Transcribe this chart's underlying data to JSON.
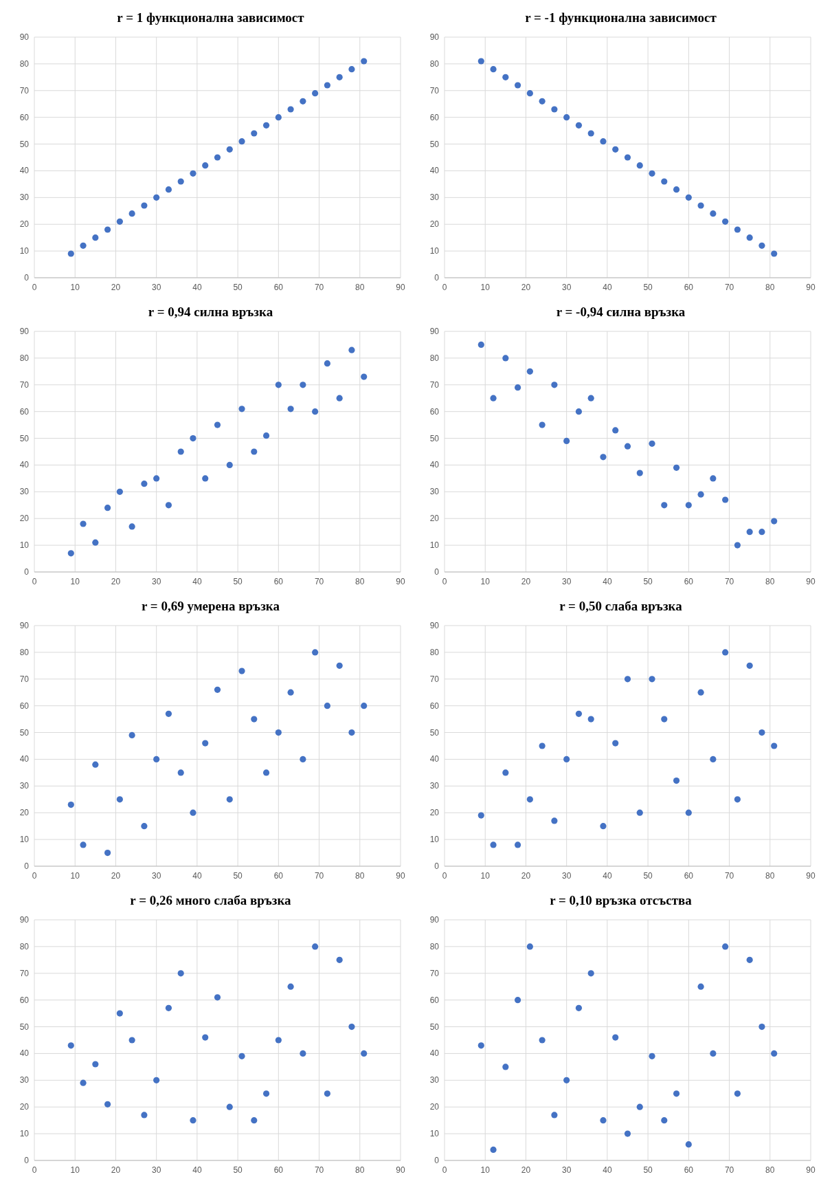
{
  "chart_data": [
    {
      "type": "scatter",
      "title": "r = 1 функционална зависимост",
      "x": [
        9,
        12,
        15,
        18,
        21,
        24,
        27,
        30,
        33,
        36,
        39,
        42,
        45,
        48,
        51,
        54,
        57,
        60,
        63,
        66,
        69,
        72,
        75,
        78,
        81
      ],
      "series": [
        {
          "color": "#4472c4",
          "values": [
            9,
            12,
            15,
            18,
            21,
            24,
            27,
            30,
            33,
            36,
            39,
            42,
            45,
            48,
            51,
            54,
            57,
            60,
            63,
            66,
            69,
            72,
            75,
            78,
            81
          ]
        }
      ],
      "xlim": [
        0,
        90
      ],
      "ylim": [
        0,
        90
      ],
      "xticks": [
        0,
        10,
        20,
        30,
        40,
        50,
        60,
        70,
        80,
        90
      ],
      "yticks": [
        0,
        10,
        20,
        30,
        40,
        50,
        60,
        70,
        80,
        90
      ],
      "grid": true,
      "marker": "circle"
    },
    {
      "type": "scatter",
      "title": "r = -1  функционална зависимост",
      "x": [
        9,
        12,
        15,
        18,
        21,
        24,
        27,
        30,
        33,
        36,
        39,
        42,
        45,
        48,
        51,
        54,
        57,
        60,
        63,
        66,
        69,
        72,
        75,
        78,
        81
      ],
      "series": [
        {
          "color": "#4472c4",
          "values": [
            81,
            78,
            75,
            72,
            69,
            66,
            63,
            60,
            57,
            54,
            51,
            48,
            45,
            42,
            39,
            36,
            33,
            30,
            27,
            24,
            21,
            18,
            15,
            12,
            9
          ]
        }
      ],
      "xlim": [
        0,
        90
      ],
      "ylim": [
        0,
        90
      ],
      "xticks": [
        0,
        10,
        20,
        30,
        40,
        50,
        60,
        70,
        80,
        90
      ],
      "yticks": [
        0,
        10,
        20,
        30,
        40,
        50,
        60,
        70,
        80,
        90
      ],
      "grid": true,
      "marker": "circle"
    },
    {
      "type": "scatter",
      "title": "r = 0,94  силна връзка",
      "x": [
        9,
        12,
        15,
        18,
        21,
        24,
        27,
        30,
        33,
        36,
        39,
        42,
        45,
        48,
        51,
        54,
        57,
        60,
        63,
        66,
        69,
        72,
        75,
        78,
        81
      ],
      "series": [
        {
          "color": "#4472c4",
          "values": [
            7,
            18,
            11,
            24,
            30,
            17,
            33,
            35,
            25,
            45,
            50,
            35,
            55,
            40,
            61,
            45,
            51,
            70,
            61,
            70,
            60,
            78,
            65,
            83,
            73
          ]
        }
      ],
      "xlim": [
        0,
        90
      ],
      "ylim": [
        0,
        90
      ],
      "xticks": [
        0,
        10,
        20,
        30,
        40,
        50,
        60,
        70,
        80,
        90
      ],
      "yticks": [
        0,
        10,
        20,
        30,
        40,
        50,
        60,
        70,
        80,
        90
      ],
      "grid": true,
      "marker": "circle"
    },
    {
      "type": "scatter",
      "title": "r = -0,94   силна връзка",
      "x": [
        9,
        12,
        15,
        18,
        21,
        24,
        27,
        30,
        33,
        36,
        39,
        42,
        45,
        48,
        51,
        54,
        57,
        60,
        63,
        66,
        69,
        72,
        75,
        78,
        81
      ],
      "series": [
        {
          "color": "#4472c4",
          "values": [
            85,
            65,
            80,
            69,
            75,
            55,
            70,
            49,
            60,
            65,
            43,
            53,
            47,
            37,
            48,
            25,
            39,
            25,
            29,
            35,
            27,
            10,
            15,
            15,
            19
          ]
        }
      ],
      "xlim": [
        0,
        90
      ],
      "ylim": [
        0,
        90
      ],
      "xticks": [
        0,
        10,
        20,
        30,
        40,
        50,
        60,
        70,
        80,
        90
      ],
      "yticks": [
        0,
        10,
        20,
        30,
        40,
        50,
        60,
        70,
        80,
        90
      ],
      "grid": true,
      "marker": "circle"
    },
    {
      "type": "scatter",
      "title": "r = 0,69   умерена връзка",
      "x": [
        9,
        12,
        15,
        18,
        21,
        24,
        27,
        30,
        33,
        36,
        39,
        42,
        45,
        48,
        51,
        54,
        57,
        60,
        63,
        66,
        69,
        72,
        75,
        78,
        81
      ],
      "series": [
        {
          "color": "#4472c4",
          "values": [
            23,
            8,
            38,
            5,
            25,
            49,
            15,
            40,
            57,
            35,
            20,
            46,
            66,
            25,
            73,
            55,
            35,
            50,
            65,
            40,
            80,
            60,
            75,
            50,
            60
          ]
        }
      ],
      "xlim": [
        0,
        90
      ],
      "ylim": [
        0,
        90
      ],
      "xticks": [
        0,
        10,
        20,
        30,
        40,
        50,
        60,
        70,
        80,
        90
      ],
      "yticks": [
        0,
        10,
        20,
        30,
        40,
        50,
        60,
        70,
        80,
        90
      ],
      "grid": true,
      "marker": "circle"
    },
    {
      "type": "scatter",
      "title": "r = 0,50   слаба връзка",
      "x": [
        9,
        12,
        15,
        18,
        21,
        24,
        27,
        30,
        33,
        36,
        39,
        42,
        45,
        48,
        51,
        54,
        57,
        60,
        63,
        66,
        69,
        72,
        75,
        78,
        81
      ],
      "series": [
        {
          "color": "#4472c4",
          "values": [
            19,
            8,
            35,
            8,
            25,
            45,
            17,
            40,
            57,
            55,
            15,
            46,
            70,
            20,
            70,
            55,
            32,
            20,
            65,
            40,
            80,
            25,
            75,
            50,
            45
          ]
        }
      ],
      "xlim": [
        0,
        90
      ],
      "ylim": [
        0,
        90
      ],
      "xticks": [
        0,
        10,
        20,
        30,
        40,
        50,
        60,
        70,
        80,
        90
      ],
      "yticks": [
        0,
        10,
        20,
        30,
        40,
        50,
        60,
        70,
        80,
        90
      ],
      "grid": true,
      "marker": "circle"
    },
    {
      "type": "scatter",
      "title": "r = 0,26   много слаба връзка",
      "x": [
        9,
        12,
        15,
        18,
        21,
        24,
        27,
        30,
        33,
        36,
        39,
        42,
        45,
        48,
        51,
        54,
        57,
        60,
        63,
        66,
        69,
        72,
        75,
        78,
        81
      ],
      "series": [
        {
          "color": "#4472c4",
          "values": [
            43,
            29,
            36,
            21,
            55,
            45,
            17,
            30,
            57,
            70,
            15,
            46,
            61,
            20,
            39,
            15,
            25,
            45,
            65,
            40,
            80,
            25,
            75,
            50,
            40
          ]
        }
      ],
      "xlim": [
        0,
        90
      ],
      "ylim": [
        0,
        90
      ],
      "xticks": [
        0,
        10,
        20,
        30,
        40,
        50,
        60,
        70,
        80,
        90
      ],
      "yticks": [
        0,
        10,
        20,
        30,
        40,
        50,
        60,
        70,
        80,
        90
      ],
      "grid": true,
      "marker": "circle"
    },
    {
      "type": "scatter",
      "title": "r = 0,10   връзка отсъства",
      "x": [
        9,
        12,
        15,
        18,
        21,
        24,
        27,
        30,
        33,
        36,
        39,
        42,
        45,
        48,
        51,
        54,
        57,
        60,
        63,
        66,
        69,
        72,
        75,
        78,
        81
      ],
      "series": [
        {
          "color": "#4472c4",
          "values": [
            43,
            4,
            35,
            60,
            80,
            45,
            17,
            30,
            57,
            70,
            15,
            46,
            10,
            20,
            39,
            15,
            25,
            6,
            65,
            40,
            80,
            25,
            75,
            50,
            40
          ]
        }
      ],
      "xlim": [
        0,
        90
      ],
      "ylim": [
        0,
        90
      ],
      "xticks": [
        0,
        10,
        20,
        30,
        40,
        50,
        60,
        70,
        80,
        90
      ],
      "yticks": [
        0,
        10,
        20,
        30,
        40,
        50,
        60,
        70,
        80,
        90
      ],
      "grid": true,
      "marker": "circle"
    }
  ]
}
